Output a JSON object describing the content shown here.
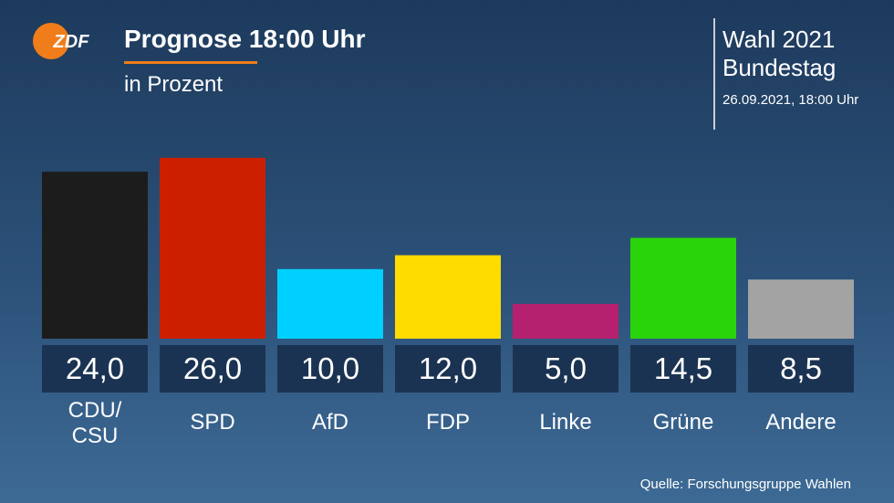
{
  "logo": "ZDF",
  "header": {
    "election": "Wahl 2021",
    "body": "Bundestag",
    "datetime": "26.09.2021, 18:00 Uhr"
  },
  "source": "Quelle: Forschungsgruppe Wahlen",
  "chart_data": {
    "type": "bar",
    "title": "Prognose 18:00 Uhr",
    "subtitle": "in Prozent",
    "categories": [
      "CDU/\nCSU",
      "SPD",
      "AfD",
      "FDP",
      "Linke",
      "Grüne",
      "Andere"
    ],
    "values": [
      24.0,
      26.0,
      10.0,
      12.0,
      5.0,
      14.5,
      8.5
    ],
    "value_labels": [
      "24,0",
      "26,0",
      "10,0",
      "12,0",
      "5,0",
      "14,5",
      "8,5"
    ],
    "colors": [
      "#1c1c1c",
      "#cc1f00",
      "#00d0ff",
      "#ffdc00",
      "#b5216e",
      "#2ad40a",
      "#a3a3a3"
    ]
  }
}
